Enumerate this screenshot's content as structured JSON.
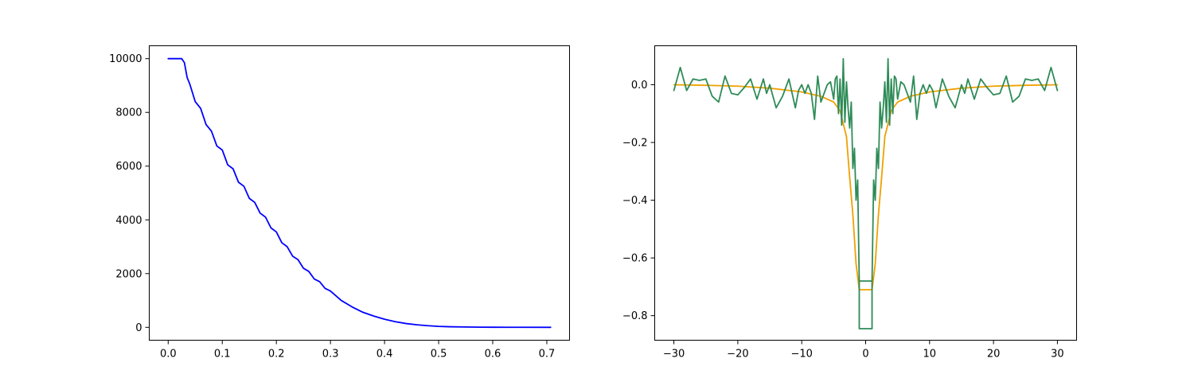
{
  "chart_data": [
    {
      "type": "line",
      "title": "",
      "xlabel": "",
      "ylabel": "",
      "xlim": [
        -0.035,
        0.742
      ],
      "ylim": [
        -480,
        10480
      ],
      "grid": false,
      "x_ticks": [
        0.0,
        0.1,
        0.2,
        0.3,
        0.4,
        0.5,
        0.6,
        0.7
      ],
      "x_tick_labels": [
        "0.0",
        "0.1",
        "0.2",
        "0.3",
        "0.4",
        "0.5",
        "0.6",
        "0.7"
      ],
      "y_ticks": [
        0,
        2000,
        4000,
        6000,
        8000,
        10000
      ],
      "y_tick_labels": [
        "0",
        "2000",
        "4000",
        "6000",
        "8000",
        "10000"
      ],
      "series": [
        {
          "color": "#0000ff",
          "x": [
            0.0,
            0.025,
            0.03,
            0.035,
            0.04,
            0.05,
            0.06,
            0.07,
            0.08,
            0.09,
            0.1,
            0.11,
            0.12,
            0.13,
            0.14,
            0.15,
            0.16,
            0.17,
            0.18,
            0.19,
            0.2,
            0.21,
            0.22,
            0.23,
            0.24,
            0.25,
            0.26,
            0.27,
            0.28,
            0.29,
            0.3,
            0.32,
            0.34,
            0.36,
            0.38,
            0.4,
            0.42,
            0.44,
            0.46,
            0.48,
            0.5,
            0.52,
            0.55,
            0.58,
            0.6,
            0.65,
            0.707
          ],
          "y": [
            10000,
            10000,
            9850,
            9300,
            9050,
            8400,
            8150,
            7550,
            7300,
            6750,
            6600,
            6050,
            5900,
            5400,
            5250,
            4800,
            4650,
            4250,
            4100,
            3700,
            3550,
            3150,
            3000,
            2650,
            2520,
            2200,
            2080,
            1800,
            1700,
            1450,
            1350,
            1000,
            760,
            560,
            420,
            300,
            210,
            140,
            95,
            60,
            35,
            22,
            12,
            6,
            3,
            1,
            0
          ]
        }
      ]
    },
    {
      "type": "line",
      "title": "",
      "xlabel": "",
      "ylabel": "",
      "xlim": [
        -33.0,
        33.0
      ],
      "ylim": [
        -0.885,
        0.135
      ],
      "grid": false,
      "x_ticks": [
        -30,
        -20,
        -10,
        0,
        10,
        20,
        30
      ],
      "x_tick_labels": [
        "−30",
        "−20",
        "−10",
        "0",
        "10",
        "20",
        "30"
      ],
      "y_ticks": [
        0.0,
        -0.2,
        -0.4,
        -0.6,
        -0.8
      ],
      "y_tick_labels": [
        "0.0",
        "−0.2",
        "−0.4",
        "−0.6",
        "−0.8"
      ],
      "series": [
        {
          "color": "#f0a000",
          "x": [
            -30,
            -25,
            -20,
            -15,
            -10,
            -7,
            -5,
            -4,
            -3,
            -2.5,
            -2,
            -1.5,
            -1,
            1,
            1.5,
            2,
            2.5,
            3,
            4,
            5,
            7,
            10,
            15,
            20,
            25,
            30
          ],
          "y": [
            0.0,
            -0.002,
            -0.005,
            -0.012,
            -0.025,
            -0.04,
            -0.06,
            -0.09,
            -0.18,
            -0.32,
            -0.45,
            -0.62,
            -0.71,
            -0.71,
            -0.62,
            -0.45,
            -0.32,
            -0.18,
            -0.09,
            -0.06,
            -0.04,
            -0.025,
            -0.012,
            -0.005,
            -0.002,
            0.0
          ]
        },
        {
          "color": "#2e8b57",
          "x": [
            -30,
            -29,
            -28,
            -27,
            -26,
            -25,
            -24,
            -23,
            -22,
            -21,
            -20,
            -19,
            -18,
            -17,
            -16,
            -15.5,
            -15,
            -14,
            -13,
            -12,
            -11,
            -10.5,
            -10,
            -9.5,
            -9,
            -8.5,
            -8,
            -7.5,
            -7,
            -6.5,
            -6,
            -5.5,
            -5,
            -4.75,
            -4.5,
            -4.25,
            -4,
            -3.75,
            -3.5,
            -3.25,
            -3,
            -2.75,
            -2.5,
            -2.25,
            -2,
            -1.75,
            -1.5,
            -1.25,
            -1,
            1,
            1.25,
            1.5,
            1.75,
            2,
            2.25,
            2.5,
            2.75,
            3,
            3.25,
            3.5,
            3.75,
            4,
            4.25,
            4.5,
            4.75,
            5,
            5.5,
            6,
            6.5,
            7,
            7.5,
            8,
            8.5,
            9,
            9.5,
            10,
            10.5,
            11,
            12,
            13,
            14,
            15,
            15.5,
            16,
            17,
            18,
            19,
            20,
            21,
            22,
            23,
            24,
            25,
            26,
            27,
            28,
            29,
            30
          ],
          "y": [
            -0.02,
            0.06,
            -0.02,
            0.02,
            0.015,
            0.02,
            -0.04,
            -0.06,
            0.03,
            -0.03,
            -0.035,
            -0.01,
            0.02,
            -0.05,
            0.02,
            -0.03,
            0.0,
            -0.08,
            -0.04,
            0.02,
            -0.08,
            -0.02,
            0.0,
            -0.03,
            0.0,
            -0.03,
            -0.12,
            0.03,
            -0.06,
            -0.03,
            0.0,
            0.01,
            -0.05,
            0.02,
            0.03,
            -0.1,
            0.02,
            -0.14,
            0.09,
            -0.13,
            0.01,
            -0.08,
            -0.15,
            -0.06,
            -0.29,
            -0.22,
            -0.4,
            -0.33,
            -0.68,
            -0.68,
            -0.33,
            -0.4,
            -0.22,
            -0.29,
            -0.06,
            -0.15,
            -0.08,
            0.01,
            -0.13,
            0.09,
            -0.14,
            0.02,
            -0.1,
            0.03,
            0.02,
            -0.05,
            0.01,
            0.0,
            -0.03,
            -0.06,
            0.03,
            -0.12,
            -0.03,
            0.0,
            -0.03,
            0.0,
            -0.02,
            -0.08,
            0.02,
            -0.04,
            -0.08,
            0.0,
            -0.03,
            0.02,
            -0.05,
            0.02,
            -0.01,
            -0.035,
            -0.03,
            0.03,
            -0.06,
            -0.04,
            0.02,
            0.015,
            0.02,
            -0.02,
            0.06,
            -0.02
          ]
        },
        {
          "color": "#2e8b57",
          "x": [
            -1,
            -1,
            1,
            1
          ],
          "y": [
            -0.68,
            -0.845,
            -0.845,
            -0.68
          ]
        }
      ]
    }
  ]
}
